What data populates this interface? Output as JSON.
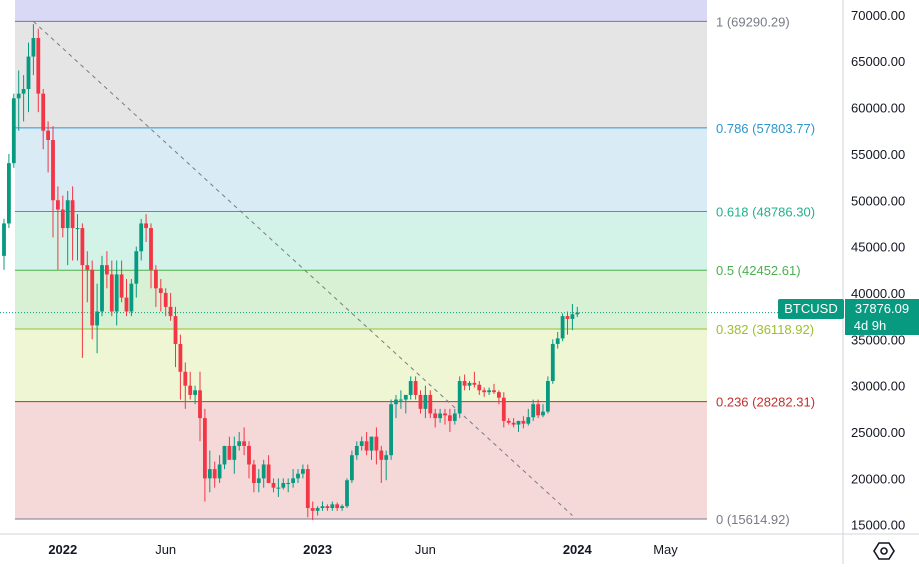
{
  "chart_data": {
    "type": "candlestick",
    "symbol": "BTCUSD",
    "last_price": "37876.09",
    "countdown": "4d 9h",
    "ylim": [
      14000,
      71600
    ],
    "y_ticks": [
      15000,
      20000,
      25000,
      30000,
      35000,
      40000,
      45000,
      50000,
      55000,
      60000,
      65000,
      70000
    ],
    "y_tick_labels": [
      "15000.00",
      "20000.00",
      "25000.00",
      "30000.00",
      "35000.00",
      "40000.00",
      "45000.00",
      "50000.00",
      "55000.00",
      "60000.00",
      "65000.00",
      "70000.00"
    ],
    "x_labels": [
      {
        "label": "2022",
        "week": 12,
        "bold": true
      },
      {
        "label": "Jun",
        "week": 33,
        "bold": false
      },
      {
        "label": "2023",
        "week": 64,
        "bold": true
      },
      {
        "label": "Jun",
        "week": 86,
        "bold": false
      },
      {
        "label": "2024",
        "week": 117,
        "bold": true
      },
      {
        "label": "May",
        "week": 135,
        "bold": false
      }
    ],
    "fib_levels": [
      {
        "ratio": "1",
        "price": 69290.29,
        "label": "1 (69290.29)",
        "line_color": "#787b86",
        "fill": "#e5e5e5",
        "text_color": "#787b86"
      },
      {
        "ratio": "0.786",
        "price": 57803.77,
        "label": "0.786 (57803.77)",
        "line_color": "#2e95cc",
        "fill": "#d9ebf5",
        "text_color": "#2e95cc"
      },
      {
        "ratio": "0.618",
        "price": 48786.3,
        "label": "0.618 (48786.30)",
        "line_color": "#22b28a",
        "fill": "#d3f3e8",
        "text_color": "#22b28a"
      },
      {
        "ratio": "0.5",
        "price": 42452.61,
        "label": "0.5 (42452.61)",
        "line_color": "#4caf50",
        "fill": "#d8f0d4",
        "text_color": "#4caf50"
      },
      {
        "ratio": "0.382",
        "price": 36118.92,
        "label": "0.382 (36118.92)",
        "line_color": "#9bbf30",
        "fill": "#eef6d4",
        "text_color": "#9bbf30"
      },
      {
        "ratio": "0.236",
        "price": 28282.31,
        "label": "0.236 (28282.31)",
        "line_color": "#c42f2f",
        "fill": "#f5d9d9",
        "text_color": "#c42f2f"
      },
      {
        "ratio": "0",
        "price": 15614.92,
        "label": "0 (15614.92)",
        "line_color": "#787b86",
        "fill": "",
        "text_color": "#787b86"
      }
    ],
    "top_fill": "#d9d8f5",
    "trend_line": {
      "from": {
        "week": 6,
        "price": 69290
      },
      "to": {
        "week": 116,
        "price": 16000
      }
    },
    "colors": {
      "up": "#089981",
      "down": "#f23645",
      "label_bg": "#089981"
    },
    "candles": [
      [
        44000,
        48000,
        42500,
        47500
      ],
      [
        47500,
        55000,
        47000,
        54000
      ],
      [
        54000,
        61500,
        53500,
        61000
      ],
      [
        61000,
        64000,
        57500,
        61500
      ],
      [
        61500,
        63500,
        58500,
        62000
      ],
      [
        62000,
        67000,
        59500,
        65500
      ],
      [
        65500,
        69000,
        63500,
        67500
      ],
      [
        67500,
        68500,
        59500,
        61500
      ],
      [
        61500,
        62000,
        55500,
        57500
      ],
      [
        57500,
        58500,
        53000,
        56500
      ],
      [
        56500,
        58000,
        46000,
        50000
      ],
      [
        50000,
        51500,
        42500,
        49000
      ],
      [
        49000,
        50500,
        46000,
        47000
      ],
      [
        47000,
        51000,
        43000,
        50000
      ],
      [
        50000,
        51500,
        43500,
        47000
      ],
      [
        47000,
        48500,
        43500,
        47000
      ],
      [
        47000,
        47500,
        33000,
        43000
      ],
      [
        43000,
        44500,
        39000,
        42500
      ],
      [
        42500,
        43500,
        35000,
        36500
      ],
      [
        36500,
        41000,
        33500,
        38000
      ],
      [
        38000,
        44000,
        37500,
        43000
      ],
      [
        43000,
        44500,
        40500,
        42000
      ],
      [
        42000,
        43500,
        37500,
        38000
      ],
      [
        38000,
        43500,
        36500,
        42000
      ],
      [
        42000,
        43500,
        39000,
        39500
      ],
      [
        39500,
        41500,
        37500,
        38000
      ],
      [
        38000,
        41500,
        37500,
        41000
      ],
      [
        41000,
        45000,
        39500,
        44500
      ],
      [
        44500,
        48000,
        43500,
        47500
      ],
      [
        47500,
        48500,
        45500,
        47000
      ],
      [
        47000,
        47500,
        40500,
        42500
      ],
      [
        42500,
        43000,
        38500,
        40500
      ],
      [
        40500,
        41500,
        38000,
        40000
      ],
      [
        40000,
        40500,
        37500,
        38500
      ],
      [
        38500,
        40000,
        37000,
        37500
      ],
      [
        37500,
        38500,
        32000,
        34500
      ],
      [
        34500,
        35500,
        28500,
        31500
      ],
      [
        31500,
        32500,
        27500,
        30000
      ],
      [
        30000,
        31500,
        28500,
        29000
      ],
      [
        29000,
        30000,
        28000,
        29500
      ],
      [
        29500,
        31500,
        24000,
        26500
      ],
      [
        26500,
        27500,
        17500,
        20000
      ],
      [
        20000,
        23000,
        18500,
        21000
      ],
      [
        21000,
        21800,
        19000,
        20000
      ],
      [
        20000,
        22500,
        19500,
        21500
      ],
      [
        21500,
        23500,
        21000,
        23500
      ],
      [
        23500,
        24500,
        22500,
        22000
      ],
      [
        22000,
        24500,
        20500,
        23500
      ],
      [
        23500,
        25000,
        23000,
        24000
      ],
      [
        24000,
        25500,
        22500,
        23500
      ],
      [
        23500,
        24000,
        20000,
        21500
      ],
      [
        21500,
        22000,
        18500,
        19500
      ],
      [
        19500,
        21000,
        18500,
        20000
      ],
      [
        20000,
        22000,
        19000,
        21500
      ],
      [
        21500,
        22500,
        19500,
        19500
      ],
      [
        19500,
        20000,
        18500,
        19000
      ],
      [
        19000,
        20000,
        18000,
        19000
      ],
      [
        19000,
        20000,
        18800,
        19500
      ],
      [
        19500,
        20000,
        18500,
        19500
      ],
      [
        19500,
        21000,
        19000,
        20000
      ],
      [
        20000,
        21000,
        19500,
        20500
      ],
      [
        20500,
        21500,
        20000,
        21000
      ],
      [
        21000,
        21500,
        15800,
        16800
      ],
      [
        16800,
        17500,
        15500,
        16500
      ],
      [
        16500,
        17000,
        16000,
        16800
      ],
      [
        16800,
        17500,
        16500,
        17000
      ],
      [
        17000,
        17200,
        16500,
        16800
      ],
      [
        16800,
        17500,
        16500,
        17200
      ],
      [
        17200,
        17400,
        16500,
        16800
      ],
      [
        16800,
        17200,
        16500,
        17000
      ],
      [
        17000,
        20000,
        16800,
        19800
      ],
      [
        19800,
        23000,
        19500,
        22500
      ],
      [
        22500,
        24000,
        22000,
        23500
      ],
      [
        23500,
        24500,
        23000,
        24000
      ],
      [
        24000,
        25000,
        22500,
        23000
      ],
      [
        23000,
        24500,
        22000,
        24500
      ],
      [
        24500,
        25500,
        21500,
        23000
      ],
      [
        23000,
        23500,
        19500,
        22000
      ],
      [
        22000,
        23000,
        19800,
        22500
      ],
      [
        22500,
        28500,
        22000,
        28000
      ],
      [
        28000,
        29000,
        26500,
        28500
      ],
      [
        28500,
        29500,
        27500,
        28500
      ],
      [
        28500,
        29000,
        27000,
        29000
      ],
      [
        29000,
        31000,
        28500,
        30500
      ],
      [
        30500,
        31000,
        28500,
        29000
      ],
      [
        29000,
        29500,
        27000,
        27500
      ],
      [
        27500,
        30000,
        26500,
        29000
      ],
      [
        29000,
        29500,
        26500,
        27000
      ],
      [
        27000,
        27500,
        25500,
        26500
      ],
      [
        26500,
        27500,
        26000,
        27000
      ],
      [
        27000,
        27500,
        25800,
        26800
      ],
      [
        26800,
        27500,
        25000,
        26200
      ],
      [
        26200,
        27500,
        25800,
        27000
      ],
      [
        27000,
        31000,
        26500,
        30500
      ],
      [
        30500,
        31200,
        29500,
        30000
      ],
      [
        30000,
        30500,
        29500,
        30300
      ],
      [
        30300,
        31500,
        29800,
        30100
      ],
      [
        30100,
        30500,
        29000,
        29500
      ],
      [
        29500,
        29800,
        28800,
        29300
      ],
      [
        29300,
        29800,
        29000,
        29500
      ],
      [
        29500,
        30200,
        29100,
        29300
      ],
      [
        29300,
        29500,
        28000,
        28700
      ],
      [
        28700,
        29300,
        25500,
        26200
      ],
      [
        26200,
        26500,
        25800,
        26000
      ],
      [
        26000,
        26500,
        25500,
        25800
      ],
      [
        25800,
        26200,
        25000,
        26200
      ],
      [
        26200,
        26700,
        25400,
        25900
      ],
      [
        25900,
        27500,
        25700,
        26600
      ],
      [
        26600,
        28500,
        26200,
        28000
      ],
      [
        28000,
        28500,
        26500,
        26800
      ],
      [
        26800,
        28000,
        26600,
        27200
      ],
      [
        27200,
        31000,
        27000,
        30500
      ],
      [
        30500,
        35000,
        30200,
        34500
      ],
      [
        34500,
        35800,
        34000,
        35100
      ],
      [
        35100,
        37800,
        34800,
        37500
      ],
      [
        37500,
        38000,
        35500,
        37200
      ],
      [
        37200,
        38800,
        36000,
        37700
      ],
      [
        37700,
        38500,
        37400,
        37876
      ]
    ]
  }
}
